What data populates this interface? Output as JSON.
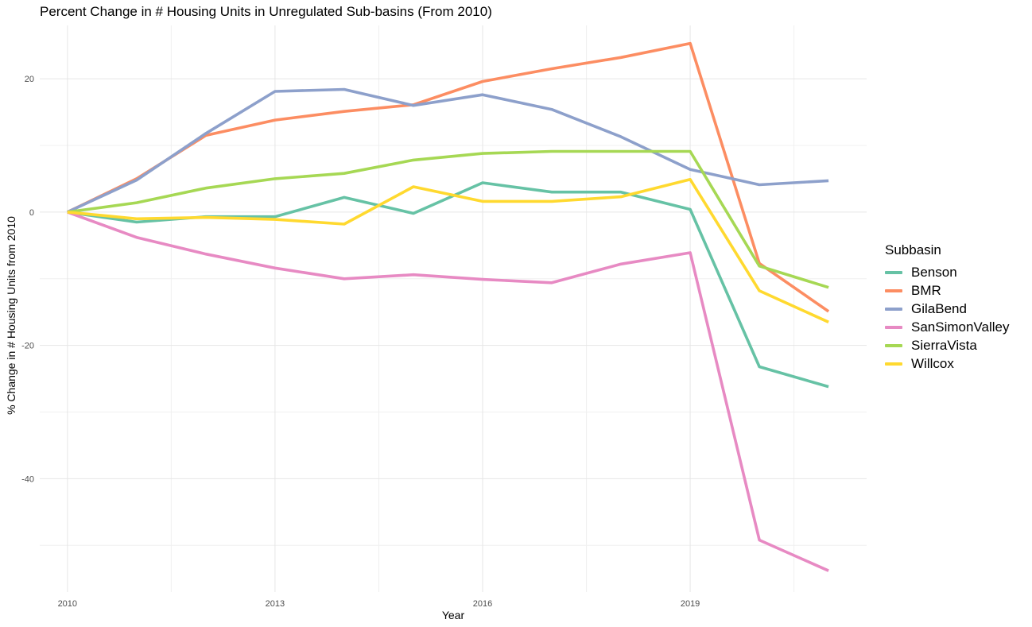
{
  "chart_data": {
    "type": "line",
    "title": "Percent Change in # Housing Units in Unregulated Sub-basins (From 2010)",
    "xlabel": "Year",
    "ylabel": "% Change in # Housing Units from 2010",
    "x": [
      2010,
      2011,
      2012,
      2013,
      2014,
      2015,
      2016,
      2017,
      2018,
      2019,
      2020,
      2021
    ],
    "x_ticks": [
      2010,
      2013,
      2016,
      2019
    ],
    "y_ticks": [
      -40,
      -20,
      0,
      20
    ],
    "xlim": [
      2009.6,
      2021.55
    ],
    "ylim": [
      -57,
      28
    ],
    "grid": true,
    "legend_title": "Subbasin",
    "legend_position": "right",
    "series": [
      {
        "name": "Benson",
        "color": "#66C2A5",
        "values": [
          0,
          -1.5,
          -0.7,
          -0.7,
          2.2,
          -0.2,
          4.4,
          3.0,
          3.0,
          0.4,
          -23.2,
          -26.2
        ]
      },
      {
        "name": "BMR",
        "color": "#FC8D62",
        "values": [
          0,
          5.0,
          11.5,
          13.8,
          15.1,
          16.1,
          19.6,
          21.5,
          23.2,
          25.3,
          -7.7,
          -14.9
        ]
      },
      {
        "name": "GilaBend",
        "color": "#8DA0CB",
        "values": [
          0,
          4.8,
          11.8,
          18.1,
          18.4,
          16.0,
          17.6,
          15.4,
          11.3,
          6.4,
          4.1,
          4.7
        ]
      },
      {
        "name": "SanSimonValley",
        "color": "#E78AC3",
        "values": [
          0,
          -3.8,
          -6.3,
          -8.4,
          -10.0,
          -9.4,
          -10.1,
          -10.6,
          -7.8,
          -6.1,
          -49.2,
          -53.8
        ]
      },
      {
        "name": "SierraVista",
        "color": "#A6D854",
        "values": [
          0,
          1.4,
          3.6,
          5.0,
          5.8,
          7.8,
          8.8,
          9.1,
          9.1,
          9.1,
          -8.1,
          -11.3
        ]
      },
      {
        "name": "Willcox",
        "color": "#FFD92F",
        "values": [
          0,
          -1.0,
          -0.8,
          -1.1,
          -1.8,
          3.8,
          1.6,
          1.6,
          2.3,
          4.9,
          -11.8,
          -16.5
        ]
      }
    ]
  }
}
